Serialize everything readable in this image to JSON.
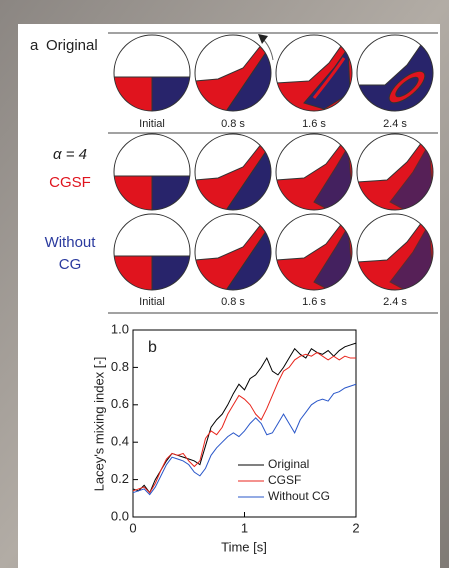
{
  "panel_a": {
    "label": "a",
    "row_labels": [
      "Original",
      "α = 4",
      "CGSF",
      "Without",
      "CG"
    ],
    "time_labels_top": [
      "Initial",
      "0.8 s",
      "1.6 s",
      "2.4 s"
    ],
    "time_labels_bottom": [
      "Initial",
      "0.8 s",
      "1.6 s",
      "2.4 s"
    ]
  },
  "chart_data": {
    "type": "line",
    "label": "b",
    "x_label": "Time [s]",
    "y_label": "Lacey's mixing index [-]",
    "x": [
      0,
      0.05,
      0.1,
      0.15,
      0.2,
      0.25,
      0.3,
      0.35,
      0.4,
      0.45,
      0.5,
      0.55,
      0.6,
      0.65,
      0.7,
      0.75,
      0.8,
      0.85,
      0.9,
      0.95,
      1.0,
      1.05,
      1.1,
      1.15,
      1.2,
      1.25,
      1.3,
      1.35,
      1.4,
      1.45,
      1.5,
      1.55,
      1.6,
      1.65,
      1.7,
      1.75,
      1.8,
      1.85,
      1.9,
      1.95,
      2.0
    ],
    "series": [
      {
        "name": "Original",
        "color": "#000000",
        "values": [
          0.15,
          0.14,
          0.17,
          0.13,
          0.2,
          0.25,
          0.3,
          0.34,
          0.33,
          0.32,
          0.31,
          0.3,
          0.28,
          0.38,
          0.48,
          0.52,
          0.55,
          0.6,
          0.66,
          0.71,
          0.68,
          0.74,
          0.76,
          0.8,
          0.85,
          0.78,
          0.76,
          0.8,
          0.85,
          0.9,
          0.87,
          0.85,
          0.9,
          0.88,
          0.87,
          0.89,
          0.86,
          0.89,
          0.91,
          0.92,
          0.93
        ]
      },
      {
        "name": "CGSF",
        "color": "#e8251c",
        "values": [
          0.14,
          0.15,
          0.16,
          0.13,
          0.18,
          0.25,
          0.31,
          0.34,
          0.33,
          0.34,
          0.3,
          0.27,
          0.3,
          0.42,
          0.46,
          0.44,
          0.48,
          0.55,
          0.6,
          0.65,
          0.63,
          0.6,
          0.55,
          0.52,
          0.58,
          0.65,
          0.72,
          0.78,
          0.8,
          0.84,
          0.86,
          0.87,
          0.86,
          0.88,
          0.86,
          0.84,
          0.86,
          0.84,
          0.86,
          0.85,
          0.85
        ]
      },
      {
        "name": "Without CG",
        "color": "#2a57c9",
        "values": [
          0.13,
          0.14,
          0.15,
          0.12,
          0.16,
          0.22,
          0.28,
          0.32,
          0.31,
          0.3,
          0.28,
          0.24,
          0.22,
          0.26,
          0.33,
          0.37,
          0.4,
          0.43,
          0.45,
          0.43,
          0.46,
          0.5,
          0.53,
          0.5,
          0.44,
          0.45,
          0.5,
          0.55,
          0.5,
          0.45,
          0.52,
          0.56,
          0.6,
          0.62,
          0.63,
          0.62,
          0.66,
          0.67,
          0.69,
          0.7,
          0.71
        ]
      }
    ],
    "xlim": [
      0,
      2
    ],
    "xticks": [
      0,
      1,
      2
    ],
    "ylim": [
      0,
      1.0
    ],
    "yticks": [
      {
        "value": 0,
        "label": "0.0"
      },
      {
        "value": 0.2,
        "label": "0.2"
      },
      {
        "value": 0.4,
        "label": "0.4"
      },
      {
        "value": 0.6,
        "label": "0.6"
      },
      {
        "value": 0.8,
        "label": "0.8"
      },
      {
        "value": 1.0,
        "label": "1.0"
      }
    ],
    "legend": "lower right"
  }
}
